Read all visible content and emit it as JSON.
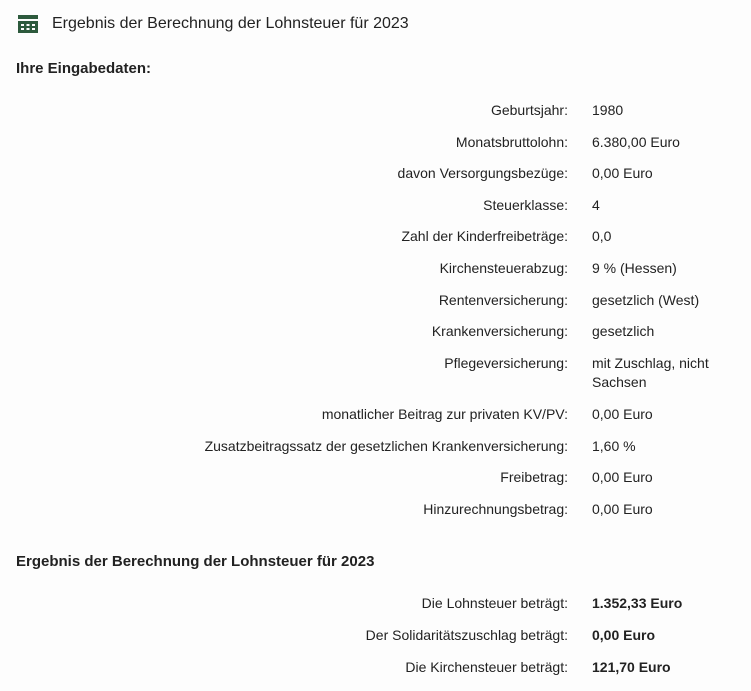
{
  "header": {
    "title": "Ergebnis der Berechnung der Lohnsteuer für 2023",
    "icon_color": "#2d5a3d"
  },
  "input_section": {
    "title": "Ihre Eingabedaten:",
    "rows": [
      {
        "label": "Geburtsjahr:",
        "value": "1980"
      },
      {
        "label": "Monatsbruttolohn:",
        "value": "6.380,00 Euro"
      },
      {
        "label": "davon Versorgungsbezüge:",
        "value": "0,00 Euro"
      },
      {
        "label": "Steuerklasse:",
        "value": "4"
      },
      {
        "label": "Zahl der Kinderfreibeträge:",
        "value": "0,0"
      },
      {
        "label": "Kirchensteuerabzug:",
        "value": "9 % (Hessen)"
      },
      {
        "label": "Rentenversicherung:",
        "value": "gesetzlich (West)"
      },
      {
        "label": "Krankenversicherung:",
        "value": "gesetzlich"
      },
      {
        "label": "Pflegeversicherung:",
        "value": "mit Zuschlag, nicht Sachsen"
      },
      {
        "label": "monatlicher Beitrag zur privaten KV/PV:",
        "value": "0,00 Euro"
      },
      {
        "label": "Zusatzbeitragssatz der gesetzlichen Krankenversicherung:",
        "value": "1,60 %"
      },
      {
        "label": "Freibetrag:",
        "value": "0,00 Euro"
      },
      {
        "label": "Hinzurechnungsbetrag:",
        "value": "0,00 Euro"
      }
    ]
  },
  "result_section": {
    "title": "Ergebnis der Berechnung der Lohnsteuer für 2023",
    "rows": [
      {
        "label": "Die Lohnsteuer beträgt:",
        "value": "1.352,33 Euro"
      },
      {
        "label": "Der Solidaritätszuschlag beträgt:",
        "value": "0,00 Euro"
      },
      {
        "label": "Die Kirchensteuer beträgt:",
        "value": "121,70 Euro"
      }
    ]
  }
}
